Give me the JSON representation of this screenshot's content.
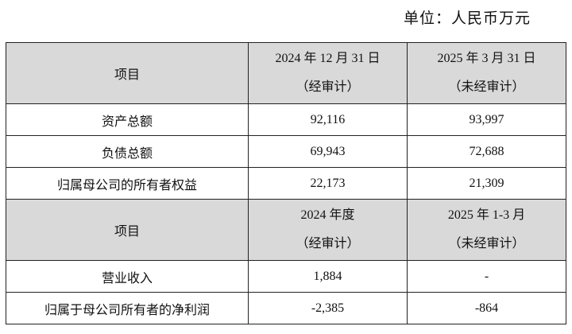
{
  "unit_note": "单位：人民币万元",
  "sections": [
    {
      "header": {
        "item": "项目",
        "col1": [
          "2024 年 12 月 31 日",
          "（经审计）"
        ],
        "col2": [
          "2025 年 3 月 31 日",
          "（未经审计）"
        ]
      },
      "rows": [
        [
          "资产总额",
          "92,116",
          "93,997"
        ],
        [
          "负债总额",
          "69,943",
          "72,688"
        ],
        [
          "归属母公司的所有者权益",
          "22,173",
          "21,309"
        ]
      ]
    },
    {
      "header": {
        "item": "项目",
        "col1": [
          "2024 年度",
          "（经审计）"
        ],
        "col2": [
          "2025 年 1-3 月",
          "（未经审计）"
        ]
      },
      "rows": [
        [
          "营业收入",
          "1,884",
          "-"
        ],
        [
          "归属于母公司所有者的净利润",
          "-2,385",
          "-864"
        ]
      ]
    }
  ]
}
